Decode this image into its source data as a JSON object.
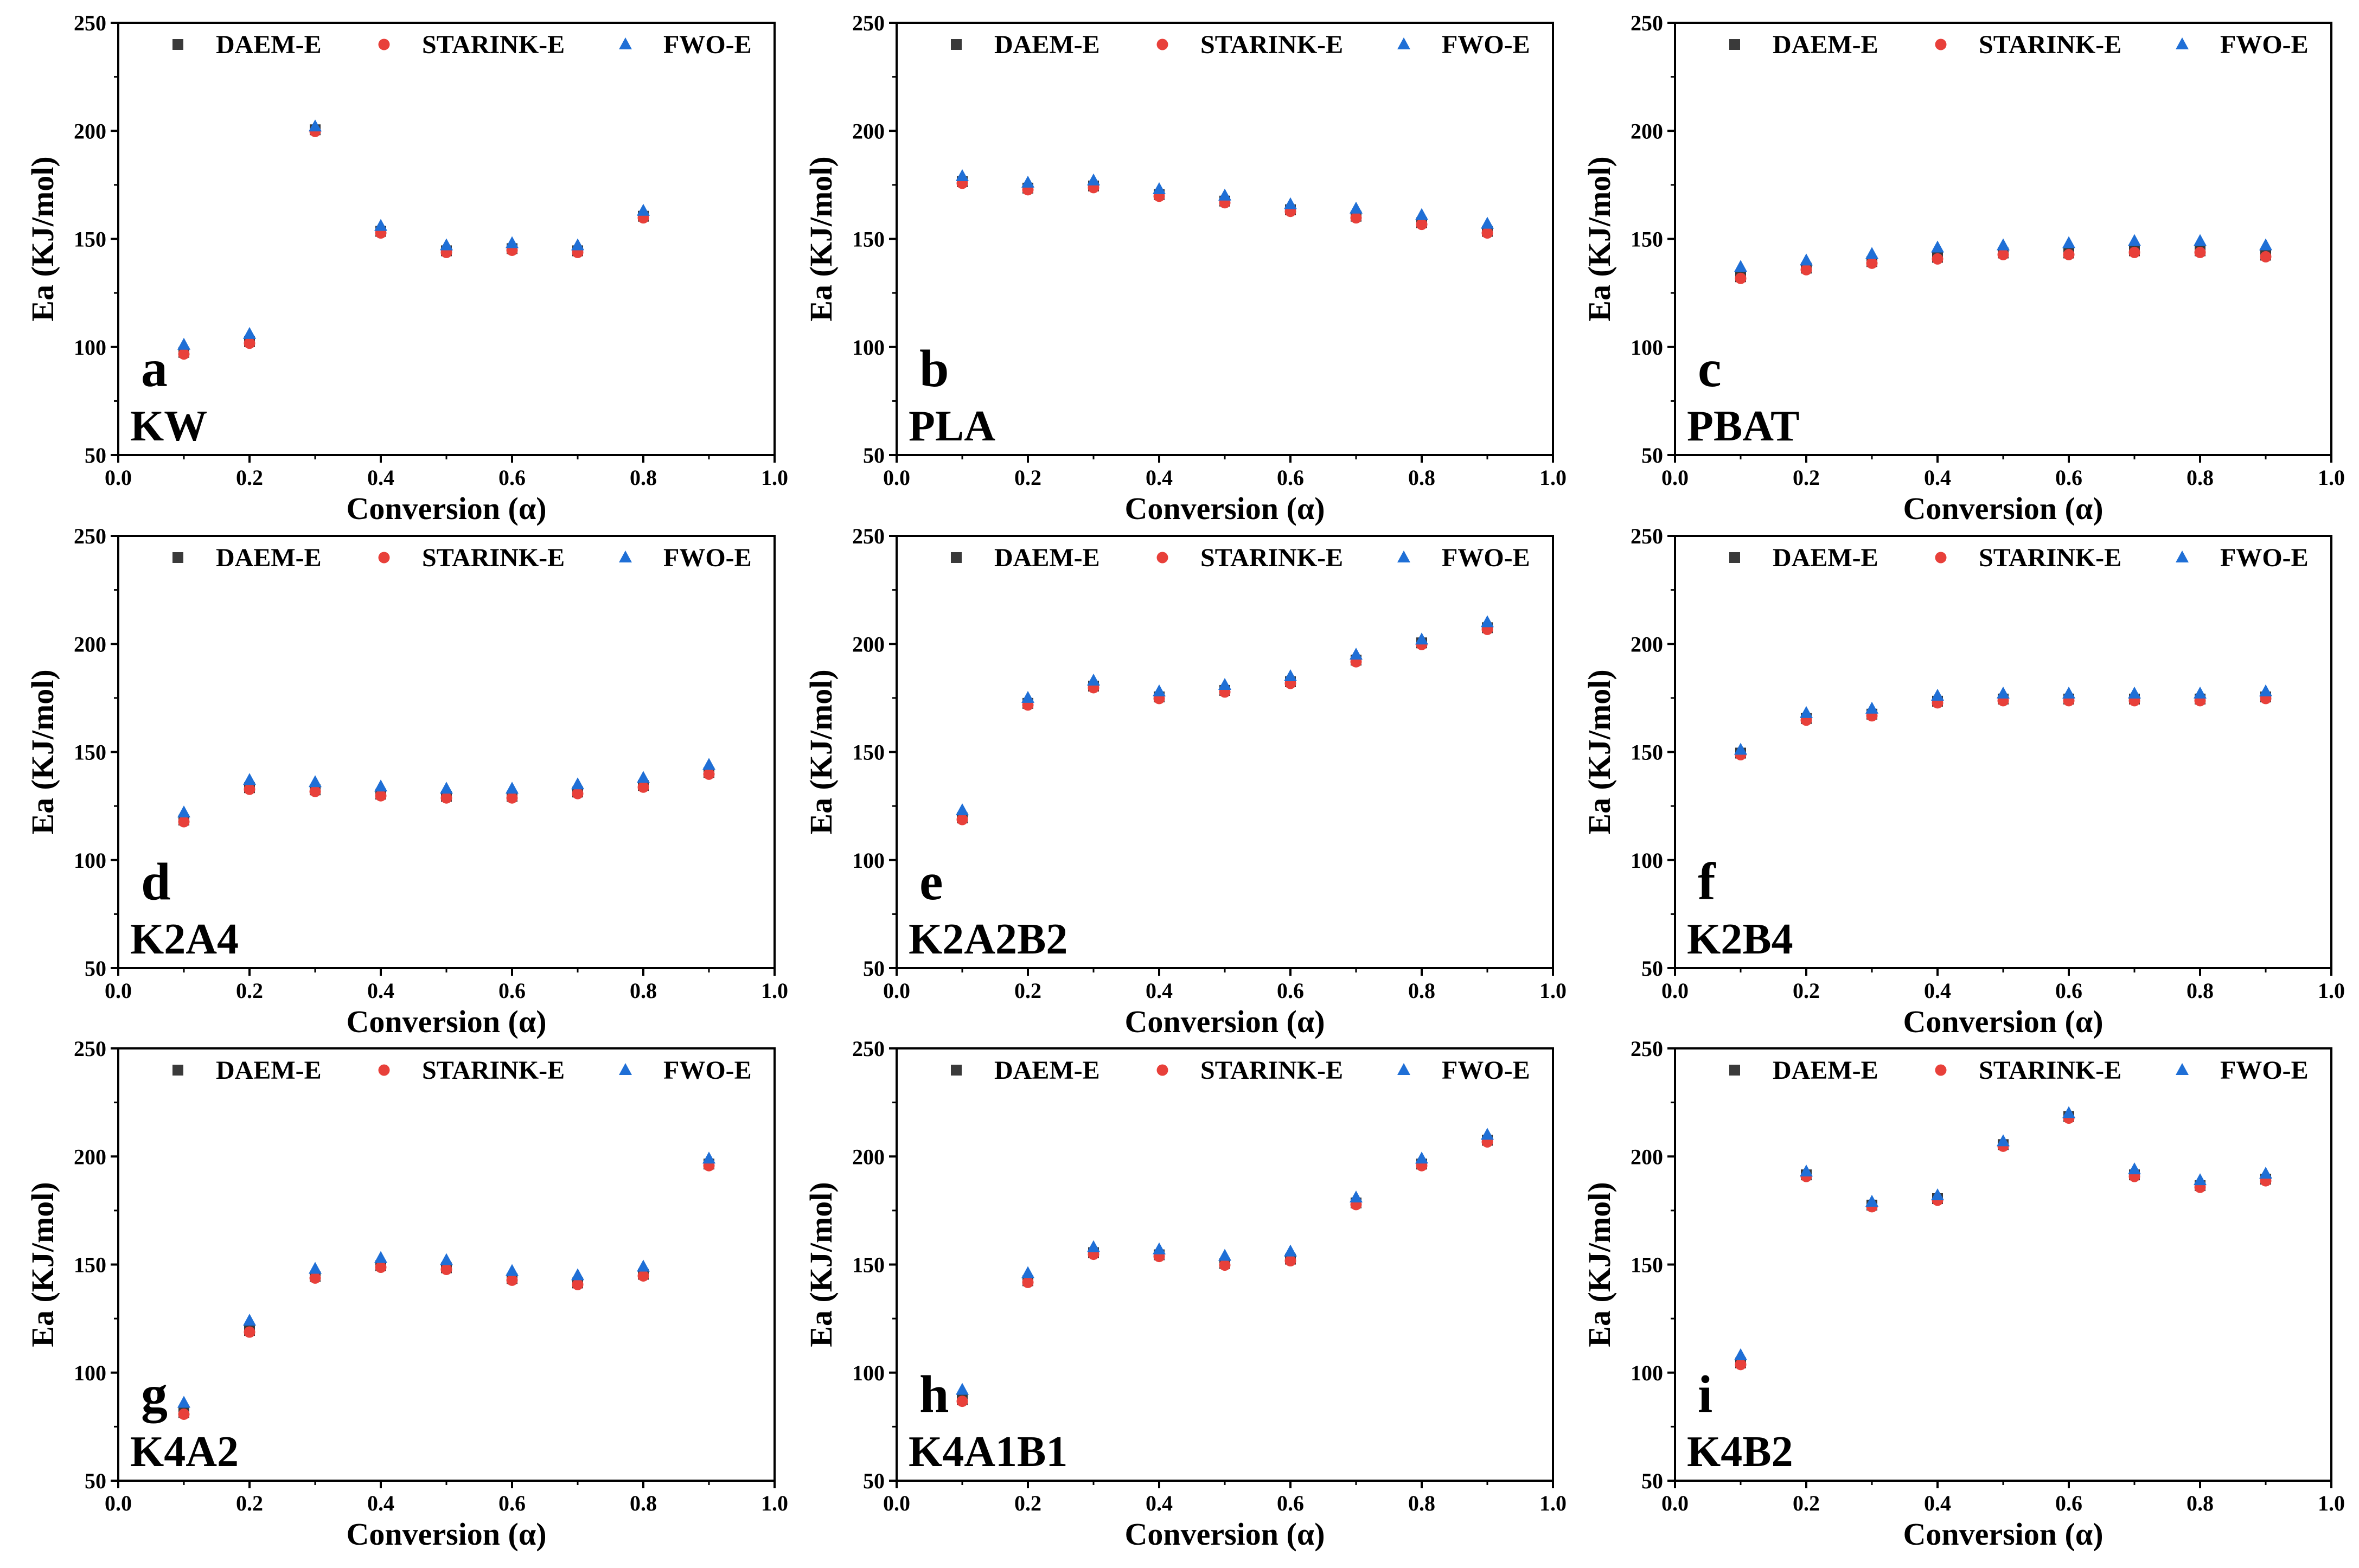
{
  "figure": {
    "colors": {
      "DAEM-E": "#3a3a3a",
      "STARINK-E": "#e8403a",
      "FWO-E": "#1f6fd6",
      "axis": "#000000"
    }
  },
  "chart_data": [
    {
      "type": "scatter",
      "panel": "a",
      "name": "KW",
      "xlabel": "Conversion (α)",
      "ylabel": "Ea (KJ/mol)",
      "xlim": [
        0.0,
        1.0
      ],
      "ylim": [
        50,
        250
      ],
      "xticks": [
        "0.0",
        "0.2",
        "0.4",
        "0.6",
        "0.8",
        "1.0"
      ],
      "yticks": [
        "50",
        "100",
        "150",
        "200",
        "250"
      ],
      "legend": [
        "DAEM-E",
        "STARINK-E",
        "FWO-E"
      ],
      "legend_position": "top",
      "x": [
        0.1,
        0.2,
        0.3,
        0.4,
        0.5,
        0.6,
        0.7,
        0.8
      ],
      "series": [
        {
          "name": "DAEM-E",
          "values": [
            98,
            103,
            201,
            154,
            145,
            146,
            145,
            161
          ]
        },
        {
          "name": "STARINK-E",
          "values": [
            98,
            103,
            201,
            154,
            145,
            146,
            145,
            161
          ]
        },
        {
          "name": "FWO-E",
          "values": [
            101,
            106,
            202,
            156,
            147,
            148,
            147,
            163
          ]
        }
      ]
    },
    {
      "type": "scatter",
      "panel": "b",
      "name": "PLA",
      "xlabel": "Conversion (α)",
      "ylabel": "Ea (KJ/mol)",
      "xlim": [
        0.0,
        1.0
      ],
      "ylim": [
        50,
        250
      ],
      "xticks": [
        "0.0",
        "0.2",
        "0.4",
        "0.6",
        "0.8",
        "1.0"
      ],
      "yticks": [
        "50",
        "100",
        "150",
        "200",
        "250"
      ],
      "legend": [
        "DAEM-E",
        "STARINK-E",
        "FWO-E"
      ],
      "legend_position": "top",
      "x": [
        0.1,
        0.2,
        0.3,
        0.4,
        0.5,
        0.6,
        0.7,
        0.8,
        0.9
      ],
      "series": [
        {
          "name": "DAEM-E",
          "values": [
            177,
            174,
            175,
            171,
            168,
            164,
            161,
            158,
            154
          ]
        },
        {
          "name": "STARINK-E",
          "values": [
            177,
            174,
            175,
            171,
            168,
            164,
            161,
            158,
            154
          ]
        },
        {
          "name": "FWO-E",
          "values": [
            179,
            176,
            177,
            173,
            170,
            166,
            164,
            161,
            157
          ]
        }
      ]
    },
    {
      "type": "scatter",
      "panel": "c",
      "name": "PBAT",
      "xlabel": "Conversion (α)",
      "ylabel": "Ea (KJ/mol)",
      "xlim": [
        0.0,
        1.0
      ],
      "ylim": [
        50,
        250
      ],
      "xticks": [
        "0.0",
        "0.2",
        "0.4",
        "0.6",
        "0.8",
        "1.0"
      ],
      "yticks": [
        "50",
        "100",
        "150",
        "200",
        "250"
      ],
      "legend": [
        "DAEM-E",
        "STARINK-E",
        "FWO-E"
      ],
      "legend_position": "top",
      "x": [
        0.1,
        0.2,
        0.3,
        0.4,
        0.5,
        0.6,
        0.7,
        0.8,
        0.9
      ],
      "series": [
        {
          "name": "DAEM-E",
          "values": [
            133,
            137,
            140,
            142,
            144,
            144,
            145,
            145,
            143
          ]
        },
        {
          "name": "STARINK-E",
          "values": [
            133,
            137,
            140,
            142,
            144,
            144,
            145,
            145,
            143
          ]
        },
        {
          "name": "FWO-E",
          "values": [
            137,
            140,
            143,
            146,
            147,
            148,
            149,
            149,
            147
          ]
        }
      ]
    },
    {
      "type": "scatter",
      "panel": "d",
      "name": "K2A4",
      "xlabel": "Conversion (α)",
      "ylabel": "Ea (KJ/mol)",
      "xlim": [
        0.0,
        1.0
      ],
      "ylim": [
        50,
        250
      ],
      "xticks": [
        "0.0",
        "0.2",
        "0.4",
        "0.6",
        "0.8",
        "1.0"
      ],
      "yticks": [
        "50",
        "100",
        "150",
        "200",
        "250"
      ],
      "legend": [
        "DAEM-E",
        "STARINK-E",
        "FWO-E"
      ],
      "legend_position": "top",
      "x": [
        0.1,
        0.2,
        0.3,
        0.4,
        0.5,
        0.6,
        0.7,
        0.8,
        0.9
      ],
      "series": [
        {
          "name": "DAEM-E",
          "values": [
            119,
            134,
            133,
            131,
            130,
            130,
            132,
            135,
            141
          ]
        },
        {
          "name": "STARINK-E",
          "values": [
            119,
            134,
            133,
            131,
            130,
            130,
            132,
            135,
            141
          ]
        },
        {
          "name": "FWO-E",
          "values": [
            122,
            137,
            136,
            134,
            133,
            133,
            135,
            138,
            144
          ]
        }
      ]
    },
    {
      "type": "scatter",
      "panel": "e",
      "name": "K2A2B2",
      "xlabel": "Conversion (α)",
      "ylabel": "Ea (KJ/mol)",
      "xlim": [
        0.0,
        1.0
      ],
      "ylim": [
        50,
        250
      ],
      "xticks": [
        "0.0",
        "0.2",
        "0.4",
        "0.6",
        "0.8",
        "1.0"
      ],
      "yticks": [
        "50",
        "100",
        "150",
        "200",
        "250"
      ],
      "legend": [
        "DAEM-E",
        "STARINK-E",
        "FWO-E"
      ],
      "legend_position": "top",
      "x": [
        0.1,
        0.2,
        0.3,
        0.4,
        0.5,
        0.6,
        0.7,
        0.8,
        0.9
      ],
      "series": [
        {
          "name": "DAEM-E",
          "values": [
            120,
            173,
            181,
            176,
            179,
            183,
            193,
            201,
            208
          ]
        },
        {
          "name": "STARINK-E",
          "values": [
            120,
            173,
            181,
            176,
            179,
            183,
            193,
            201,
            208
          ]
        },
        {
          "name": "FWO-E",
          "values": [
            123,
            175,
            183,
            178,
            181,
            185,
            195,
            202,
            210
          ]
        }
      ]
    },
    {
      "type": "scatter",
      "panel": "f",
      "name": "K2B4",
      "xlabel": "Conversion (α)",
      "ylabel": "Ea (KJ/mol)",
      "xlim": [
        0.0,
        1.0
      ],
      "ylim": [
        50,
        250
      ],
      "xticks": [
        "0.0",
        "0.2",
        "0.4",
        "0.6",
        "0.8",
        "1.0"
      ],
      "yticks": [
        "50",
        "100",
        "150",
        "200",
        "250"
      ],
      "legend": [
        "DAEM-E",
        "STARINK-E",
        "FWO-E"
      ],
      "legend_position": "top",
      "x": [
        0.1,
        0.2,
        0.3,
        0.4,
        0.5,
        0.6,
        0.7,
        0.8,
        0.9
      ],
      "series": [
        {
          "name": "DAEM-E",
          "values": [
            150,
            166,
            168,
            174,
            175,
            175,
            175,
            175,
            176
          ]
        },
        {
          "name": "STARINK-E",
          "values": [
            150,
            166,
            168,
            174,
            175,
            175,
            175,
            175,
            176
          ]
        },
        {
          "name": "FWO-E",
          "values": [
            151,
            168,
            170,
            176,
            177,
            177,
            177,
            177,
            178
          ]
        }
      ]
    },
    {
      "type": "scatter",
      "panel": "g",
      "name": "K4A2",
      "xlabel": "Conversion (α)",
      "ylabel": "Ea (KJ/mol)",
      "xlim": [
        0.0,
        1.0
      ],
      "ylim": [
        50,
        250
      ],
      "xticks": [
        "0.0",
        "0.2",
        "0.4",
        "0.6",
        "0.8",
        "1.0"
      ],
      "yticks": [
        "50",
        "100",
        "150",
        "200",
        "250"
      ],
      "legend": [
        "DAEM-E",
        "STARINK-E",
        "FWO-E"
      ],
      "legend_position": "top",
      "x": [
        0.1,
        0.2,
        0.3,
        0.4,
        0.5,
        0.6,
        0.7,
        0.8,
        0.9
      ],
      "series": [
        {
          "name": "DAEM-E",
          "values": [
            82,
            120,
            145,
            150,
            149,
            144,
            142,
            146,
            197
          ]
        },
        {
          "name": "STARINK-E",
          "values": [
            82,
            120,
            145,
            150,
            149,
            144,
            142,
            146,
            197
          ]
        },
        {
          "name": "FWO-E",
          "values": [
            86,
            124,
            148,
            153,
            152,
            147,
            145,
            149,
            199
          ]
        }
      ]
    },
    {
      "type": "scatter",
      "panel": "h",
      "name": "K4A1B1",
      "xlabel": "Conversion (α)",
      "ylabel": "Ea (KJ/mol)",
      "xlim": [
        0.0,
        1.0
      ],
      "ylim": [
        50,
        250
      ],
      "xticks": [
        "0.0",
        "0.2",
        "0.4",
        "0.6",
        "0.8",
        "1.0"
      ],
      "yticks": [
        "50",
        "100",
        "150",
        "200",
        "250"
      ],
      "legend": [
        "DAEM-E",
        "STARINK-E",
        "FWO-E"
      ],
      "legend_position": "top",
      "x": [
        0.1,
        0.2,
        0.3,
        0.4,
        0.5,
        0.6,
        0.7,
        0.8,
        0.9
      ],
      "series": [
        {
          "name": "DAEM-E",
          "values": [
            88,
            143,
            156,
            155,
            151,
            153,
            179,
            197,
            208
          ]
        },
        {
          "name": "STARINK-E",
          "values": [
            88,
            143,
            156,
            155,
            151,
            153,
            179,
            197,
            208
          ]
        },
        {
          "name": "FWO-E",
          "values": [
            92,
            146,
            158,
            157,
            154,
            156,
            181,
            199,
            210
          ]
        }
      ]
    },
    {
      "type": "scatter",
      "panel": "i",
      "name": "K4B2",
      "xlabel": "Conversion (α)",
      "ylabel": "Ea (KJ/mol)",
      "xlim": [
        0.0,
        1.0
      ],
      "ylim": [
        50,
        250
      ],
      "xticks": [
        "0.0",
        "0.2",
        "0.4",
        "0.6",
        "0.8",
        "1.0"
      ],
      "yticks": [
        "50",
        "100",
        "150",
        "200",
        "250"
      ],
      "legend": [
        "DAEM-E",
        "STARINK-E",
        "FWO-E"
      ],
      "legend_position": "top",
      "x": [
        0.1,
        0.2,
        0.3,
        0.4,
        0.5,
        0.6,
        0.7,
        0.8,
        0.9
      ],
      "series": [
        {
          "name": "DAEM-E",
          "values": [
            105,
            192,
            178,
            181,
            206,
            219,
            192,
            187,
            190
          ]
        },
        {
          "name": "STARINK-E",
          "values": [
            105,
            192,
            178,
            181,
            206,
            219,
            192,
            187,
            190
          ]
        },
        {
          "name": "FWO-E",
          "values": [
            108,
            193,
            179,
            182,
            207,
            220,
            194,
            189,
            192
          ]
        }
      ]
    }
  ]
}
